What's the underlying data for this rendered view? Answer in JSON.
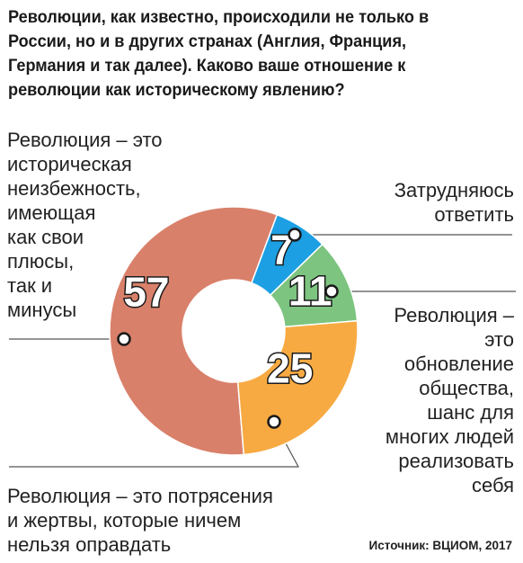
{
  "title": "Революции, как известно, происходили не только в России, но и в других странах (Англия, Франция, Германия и так далее). Каково ваше отношение к революции как историческому явлению?",
  "source": "Источник: ВЦИОМ, 2017",
  "chart_data": {
    "type": "pie",
    "variant": "donut",
    "title": "Революции, как известно, происходили не только в России, но и в других странах (Англия, Франция, Германия и так далее). Каково ваше отношение к революции как историческому явлению?",
    "slices": [
      {
        "label": "Революция – это\nисторическая\nнеизбежность,\nимеющая\nкак свои\nплюсы,\nтак и\nминусы",
        "value": 57,
        "color": "#d9806a"
      },
      {
        "label": "Затрудняюсь\nответить",
        "value": 7,
        "color": "#1c9fe3"
      },
      {
        "label": "Революция –\nэто\nобновление\nобщества,\nшанс для\nмногих людей\nреализовать\nсебя",
        "value": 11,
        "color": "#7cc47f"
      },
      {
        "label": "Революция – это потрясения\nи жертвы, которые ничем\nнельзя оправдать",
        "value": 25,
        "color": "#f8aa42"
      }
    ]
  }
}
